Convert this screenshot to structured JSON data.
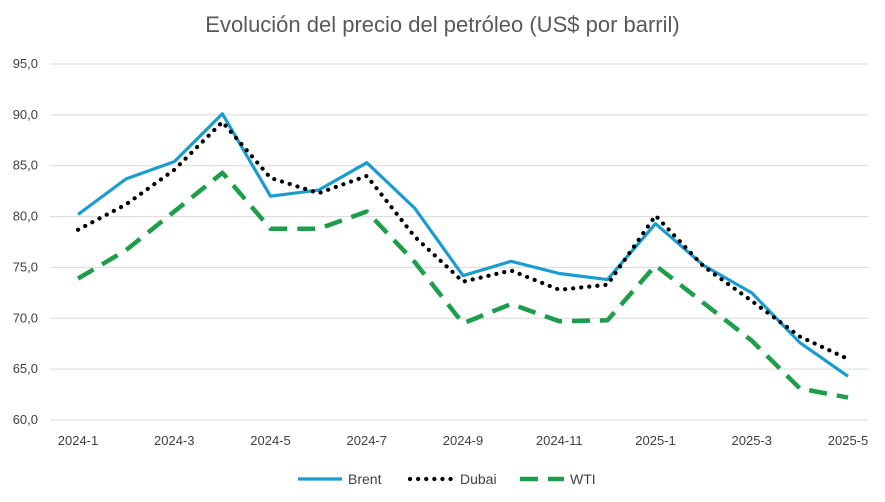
{
  "chart_data": {
    "type": "line",
    "title": "Evolución del precio del petróleo (US$ por barril)",
    "xlabel": "",
    "ylabel": "",
    "x": [
      "2024-1",
      "2024-2",
      "2024-3",
      "2024-4",
      "2024-5",
      "2024-6",
      "2024-7",
      "2024-8",
      "2024-9",
      "2024-10",
      "2024-11",
      "2024-12",
      "2025-1",
      "2025-2",
      "2025-3",
      "2025-4",
      "2025-5"
    ],
    "x_tick_labels": [
      "2024-1",
      "2024-3",
      "2024-5",
      "2024-7",
      "2024-9",
      "2024-11",
      "2025-1",
      "2025-3",
      "2025-5"
    ],
    "y_tick_labels": [
      "95,0",
      "90,0",
      "85,0",
      "80,0",
      "75,0",
      "70,0",
      "65,0",
      "60,0"
    ],
    "ylim": [
      60,
      95
    ],
    "grid": true,
    "legend_position": "bottom",
    "series": [
      {
        "name": "Brent",
        "color": "#1A9CD0",
        "style": "solid",
        "values": [
          80.2,
          83.7,
          85.4,
          90.1,
          82.0,
          82.6,
          85.3,
          80.8,
          74.2,
          75.6,
          74.4,
          73.8,
          79.3,
          75.2,
          72.5,
          67.6,
          64.3
        ]
      },
      {
        "name": "Dubai",
        "color": "#000000",
        "style": "dotted",
        "values": [
          78.7,
          81.2,
          84.6,
          89.3,
          83.8,
          82.3,
          84.0,
          78.0,
          73.6,
          74.7,
          72.8,
          73.3,
          80.1,
          75.1,
          71.7,
          68.2,
          66.0
        ]
      },
      {
        "name": "WTI",
        "color": "#1E9E4A",
        "style": "dashed",
        "values": [
          73.9,
          76.7,
          80.5,
          84.3,
          78.8,
          78.8,
          80.5,
          75.5,
          69.5,
          71.4,
          69.7,
          69.8,
          75.2,
          71.5,
          67.8,
          63.1,
          62.2
        ]
      }
    ]
  }
}
